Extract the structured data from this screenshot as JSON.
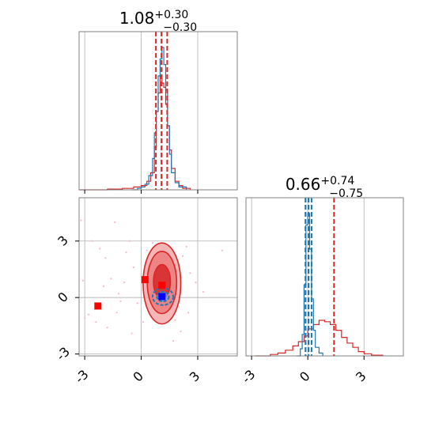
{
  "chart_data": {
    "type": "corner",
    "colors": {
      "blue": "#1f77b4",
      "red": "#d62728",
      "grid": "#b0b0b0",
      "marker_blue": "#0000ff",
      "marker_red": "#ff0000",
      "scatter": "#f7b6d2"
    },
    "xlim": [
      -3.3,
      5.1
    ],
    "ylim": [
      -3.1,
      5.3
    ],
    "ticks": [
      -3,
      0,
      3
    ],
    "tick_labels": [
      "-3",
      "0",
      "3"
    ],
    "grid": true,
    "panels": [
      {
        "name": "param-1-marginal",
        "title": {
          "value": "1.08",
          "plus": "+0.30",
          "minus": "−0.30"
        },
        "quantile_lines": [
          {
            "value": 0.78,
            "color": "red"
          },
          {
            "value": 1.08,
            "color": "blue"
          },
          {
            "value": 1.08,
            "color": "red"
          },
          {
            "value": 1.38,
            "color": "red"
          }
        ],
        "hist_blue": {
          "x": [
            -0.5,
            -0.2,
            0.0,
            0.2,
            0.4,
            0.6,
            0.7,
            0.8,
            0.9,
            1.0,
            1.1,
            1.2,
            1.3,
            1.4,
            1.5,
            1.6,
            1.8,
            2.0,
            2.4
          ],
          "y": [
            0.0,
            0.01,
            0.02,
            0.04,
            0.1,
            0.22,
            0.4,
            0.55,
            0.8,
            0.92,
            1.0,
            0.88,
            0.7,
            0.45,
            0.25,
            0.12,
            0.05,
            0.02,
            0.0
          ]
        },
        "hist_red": {
          "x": [
            -3.3,
            -1.8,
            -1.0,
            -0.4,
            0.0,
            0.3,
            0.5,
            0.7,
            0.8,
            0.9,
            1.0,
            1.1,
            1.2,
            1.3,
            1.4,
            1.5,
            1.6,
            1.8,
            2.0,
            2.2,
            2.6
          ],
          "y": [
            0.0,
            0.005,
            0.01,
            0.02,
            0.03,
            0.06,
            0.12,
            0.3,
            0.55,
            0.68,
            0.8,
            0.75,
            0.72,
            0.6,
            0.45,
            0.28,
            0.15,
            0.06,
            0.03,
            0.01,
            0.0
          ]
        }
      },
      {
        "name": "param-2-marginal",
        "title": {
          "value": "0.66",
          "plus": "+0.74",
          "minus": "−0.75"
        },
        "quantile_lines": [
          {
            "value": -0.12,
            "color": "red"
          },
          {
            "value": -0.12,
            "color": "blue"
          },
          {
            "value": 0.04,
            "color": "red"
          },
          {
            "value": 0.04,
            "color": "blue"
          },
          {
            "value": 0.2,
            "color": "blue"
          },
          {
            "value": 1.4,
            "color": "red"
          }
        ],
        "hist_blue": {
          "x": [
            -0.6,
            -0.4,
            -0.3,
            -0.2,
            -0.1,
            0.0,
            0.1,
            0.2,
            0.3,
            0.4,
            0.6,
            0.8
          ],
          "y": [
            0.0,
            0.05,
            0.15,
            0.5,
            0.92,
            1.0,
            0.75,
            0.4,
            0.18,
            0.06,
            0.02,
            0.0
          ]
        },
        "hist_red": {
          "x": [
            -2.8,
            -2.0,
            -1.6,
            -1.2,
            -0.8,
            -0.5,
            -0.2,
            0.0,
            0.3,
            0.6,
            0.9,
            1.2,
            1.5,
            1.8,
            2.1,
            2.4,
            2.7,
            3.0,
            3.4,
            4.0
          ],
          "y": [
            0.0,
            0.01,
            0.02,
            0.04,
            0.07,
            0.1,
            0.14,
            0.19,
            0.22,
            0.25,
            0.24,
            0.22,
            0.18,
            0.13,
            0.09,
            0.06,
            0.03,
            0.015,
            0.005,
            0.0
          ]
        }
      }
    ],
    "joint": {
      "name": "param-1-vs-param-2",
      "red_contours": [
        {
          "cx": 1.1,
          "cy": 0.75,
          "rx": 1.0,
          "ry": 2.15
        },
        {
          "cx": 1.1,
          "cy": 0.8,
          "rx": 0.78,
          "ry": 1.65
        },
        {
          "cx": 1.1,
          "cy": 0.85,
          "rx": 0.45,
          "ry": 0.9
        }
      ],
      "blue_contours": [
        {
          "cx": 1.15,
          "cy": 0.05,
          "rx": 0.55,
          "ry": 0.45
        },
        {
          "cx": 1.15,
          "cy": 0.05,
          "rx": 0.32,
          "ry": 0.26
        }
      ],
      "markers": [
        {
          "x": -2.3,
          "y": -0.45,
          "color": "marker_red"
        },
        {
          "x": 0.2,
          "y": 0.95,
          "color": "marker_red"
        },
        {
          "x": 1.1,
          "y": 0.65,
          "color": "marker_red"
        },
        {
          "x": 1.1,
          "y": 0.05,
          "color": "marker_blue"
        }
      ],
      "scatter": [
        [
          -3.2,
          4.1
        ],
        [
          -2.6,
          3.0
        ],
        [
          -2.2,
          2.6
        ],
        [
          -1.9,
          2.1
        ],
        [
          -1.4,
          4.0
        ],
        [
          -1.6,
          1.0
        ],
        [
          -1.2,
          0.2
        ],
        [
          -2.8,
          -0.9
        ],
        [
          -2.4,
          -1.3
        ],
        [
          -1.8,
          -1.6
        ],
        [
          -1.3,
          -0.8
        ],
        [
          -0.8,
          2.4
        ],
        [
          -0.6,
          3.0
        ],
        [
          -0.4,
          1.6
        ],
        [
          -0.2,
          -0.3
        ],
        [
          -0.5,
          -1.9
        ],
        [
          0.1,
          -1.3
        ],
        [
          0.3,
          2.5
        ],
        [
          2.2,
          2.2
        ],
        [
          2.4,
          2.7
        ],
        [
          2.6,
          1.3
        ],
        [
          2.9,
          0.8
        ],
        [
          2.5,
          -0.8
        ],
        [
          2.1,
          -1.8
        ],
        [
          1.7,
          -2.3
        ],
        [
          4.3,
          2.5
        ],
        [
          3.3,
          0.3
        ],
        [
          -3.0,
          -1.1
        ],
        [
          -1.1,
          -0.2
        ],
        [
          -0.9,
          0.8
        ],
        [
          0.6,
          2.9
        ],
        [
          1.8,
          -1.2
        ],
        [
          2.0,
          1.6
        ],
        [
          -2.0,
          0.6
        ],
        [
          -3.1,
          0.9
        ]
      ]
    }
  }
}
